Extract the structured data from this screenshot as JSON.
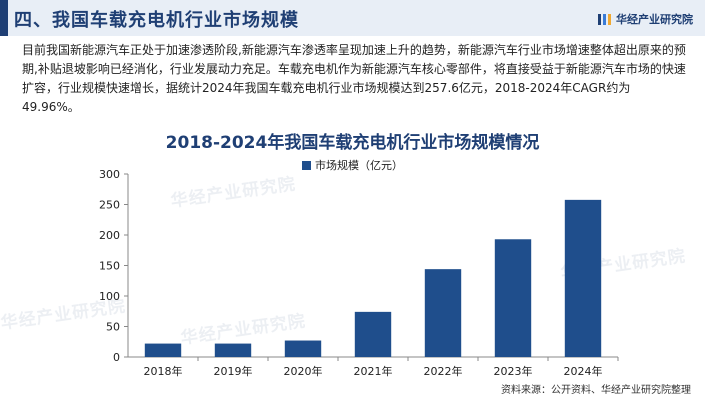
{
  "header": {
    "title": "四、我国车载充电机行业市场规模",
    "brand": "华经产业研究院"
  },
  "paragraph": "目前我国新能源汽车正处于加速渗透阶段,新能源汽车渗透率呈现加速上升的趋势，新能源汽车行业市场增速整体超出原来的预期,补贴退坡影响已经消化，行业发展动力充足。车载充电机作为新能源汽车核心零部件，将直接受益于新能源汽车市场的快速扩容，行业规模快速增长，据统计2024年我国车载充电机行业市场规模达到257.6亿元，2018-2024年CAGR约为49.96%。",
  "watermark_text": "华经产业研究院",
  "source": "资料来源：公开资料、华经产业研究院整理",
  "colors": {
    "bar": "#1f4e8c",
    "title": "#1f3f74",
    "header_bg": "#e8eef6"
  },
  "chart_data": {
    "type": "bar",
    "title": "2018-2024年我国车载充电机行业市场规模情况",
    "categories": [
      "2018年",
      "2019年",
      "2020年",
      "2021年",
      "2022年",
      "2023年",
      "2024年"
    ],
    "series": [
      {
        "name": "市场规模（亿元）",
        "values": [
          22,
          22,
          27,
          74,
          144,
          193,
          257.6
        ]
      }
    ],
    "ylim": [
      0,
      300
    ],
    "yticks": [
      0,
      50,
      100,
      150,
      200,
      250,
      300
    ],
    "xlabel": "",
    "ylabel": "",
    "grid": false,
    "legend": "top-center"
  }
}
